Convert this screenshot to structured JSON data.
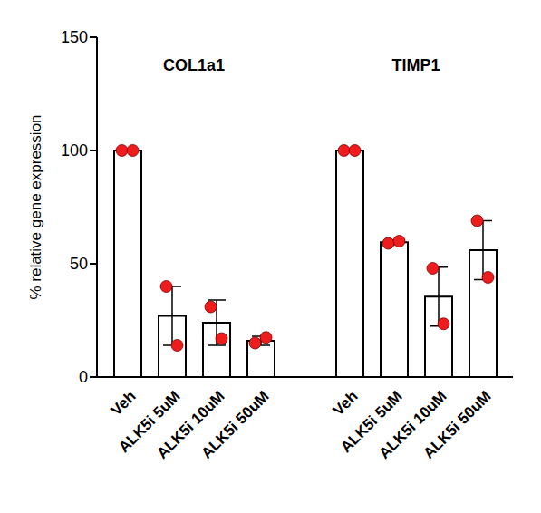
{
  "chart_data": {
    "type": "bar",
    "ylabel": "% relative gene expression",
    "ylim": [
      0,
      150
    ],
    "yticks": [
      0,
      50,
      100,
      150
    ],
    "categories": [
      "Veh",
      "ALK5i 5uM",
      "ALK5i 10uM",
      "ALK5i 50uM",
      null,
      "Veh",
      "ALK5i 5uM",
      "ALK5i 10uM",
      "ALK5i 50uM"
    ],
    "groups": [
      "COL1a1",
      "TIMP1"
    ],
    "values": [
      100,
      27,
      24,
      16,
      null,
      100,
      59.5,
      35.5,
      56
    ],
    "errors": [
      0,
      13,
      10,
      2,
      null,
      0,
      1,
      13,
      13
    ],
    "color": "#ffffff",
    "points": {
      "color": "#ee1c1c",
      "marker": "circle",
      "values": [
        [
          100,
          100
        ],
        [
          40,
          14
        ],
        [
          31,
          17
        ],
        [
          15,
          17.5
        ],
        null,
        [
          100,
          100
        ],
        [
          59,
          60
        ],
        [
          48,
          23.5
        ],
        [
          69,
          44
        ]
      ]
    }
  }
}
